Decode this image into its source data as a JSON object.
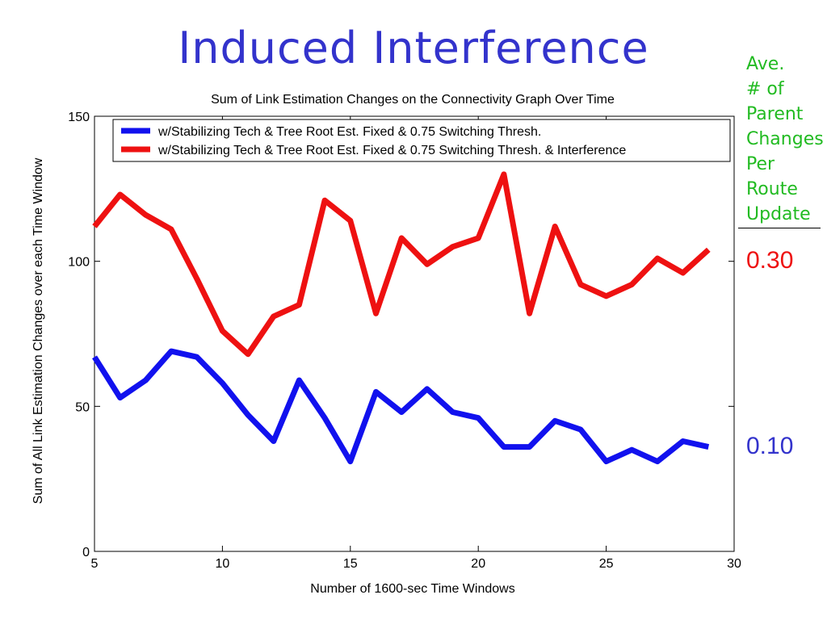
{
  "slide": {
    "title": "Induced Interference",
    "side_label_lines": [
      "Ave.",
      "# of",
      "Parent",
      "Changes",
      "Per",
      "Route",
      "Update"
    ],
    "side_values": [
      {
        "text": "0.30",
        "color": "#ee1111"
      },
      {
        "text": "0.10",
        "color": "#3333cc"
      }
    ]
  },
  "chart_data": {
    "type": "line",
    "title": "Sum of Link Estimation Changes on the Connectivity Graph Over Time",
    "xlabel": "Number of 1600-sec Time Windows",
    "ylabel": "Sum of All Link Estimation Changes over each Time Window",
    "xlim": [
      5,
      30
    ],
    "ylim": [
      0,
      150
    ],
    "xticks": [
      5,
      10,
      15,
      20,
      25,
      30
    ],
    "yticks": [
      0,
      50,
      100,
      150
    ],
    "grid": false,
    "legend_position": "top",
    "x": [
      5,
      6,
      7,
      8,
      9,
      10,
      11,
      12,
      13,
      14,
      15,
      16,
      17,
      18,
      19,
      20,
      21,
      22,
      23,
      24,
      25,
      26,
      27,
      28,
      29
    ],
    "series": [
      {
        "name": "w/Stabilizing Tech & Tree Root Est. Fixed & 0.75 Switching Thresh.",
        "color": "#1111ee",
        "values": [
          67,
          53,
          59,
          69,
          67,
          58,
          47,
          38,
          59,
          46,
          31,
          55,
          48,
          56,
          48,
          46,
          36,
          36,
          45,
          42,
          31,
          35,
          31,
          38,
          36
        ]
      },
      {
        "name": "w/Stabilizing Tech & Tree Root Est. Fixed & 0.75 Switching Thresh. & Interference",
        "color": "#ee1111",
        "values": [
          112,
          123,
          116,
          111,
          94,
          76,
          68,
          81,
          85,
          121,
          114,
          82,
          108,
          99,
          105,
          108,
          130,
          82,
          112,
          92,
          88,
          92,
          101,
          96,
          104
        ]
      }
    ]
  }
}
